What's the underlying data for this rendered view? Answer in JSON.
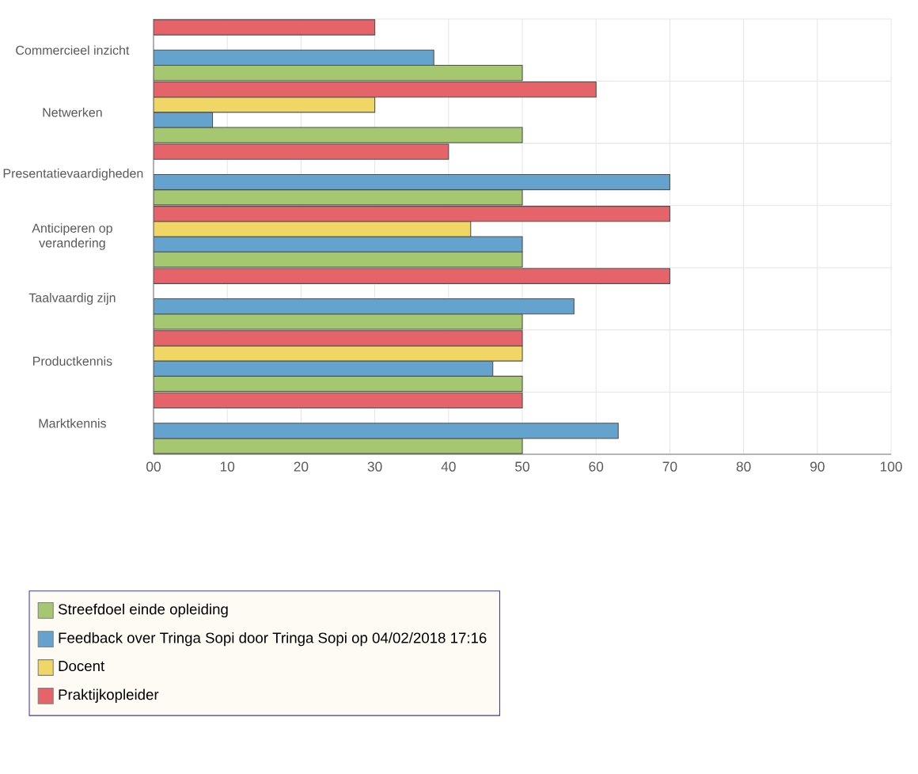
{
  "chart_data": {
    "type": "bar",
    "orientation": "horizontal",
    "categories": [
      "Commercieel inzicht",
      "Netwerken",
      "Presentatievaardigheden",
      "Anticiperen op verandering",
      "Taalvaardig zijn",
      "Productkennis",
      "Marktkennis"
    ],
    "series": [
      {
        "name": "Streefdoel einde opleiding",
        "color": "#a4c76f",
        "values": [
          50,
          50,
          50,
          50,
          50,
          50,
          50
        ]
      },
      {
        "name": "Feedback over Tringa Sopi door Tringa Sopi op 04/02/2018 17:16",
        "color": "#65a3cf",
        "values": [
          38,
          8,
          70,
          50,
          57,
          46,
          63
        ]
      },
      {
        "name": "Docent",
        "color": "#f0d665",
        "values": [
          null,
          30,
          null,
          43,
          null,
          50,
          null
        ]
      },
      {
        "name": "Praktijkopleider",
        "color": "#e5646a",
        "values": [
          30,
          60,
          40,
          70,
          70,
          50,
          50
        ]
      }
    ],
    "xlim": [
      0,
      100
    ],
    "xticks": [
      {
        "value": 0,
        "label": "00"
      },
      10,
      20,
      30,
      40,
      50,
      60,
      70,
      80,
      90,
      100
    ],
    "grid": true,
    "legend": "bottom"
  }
}
